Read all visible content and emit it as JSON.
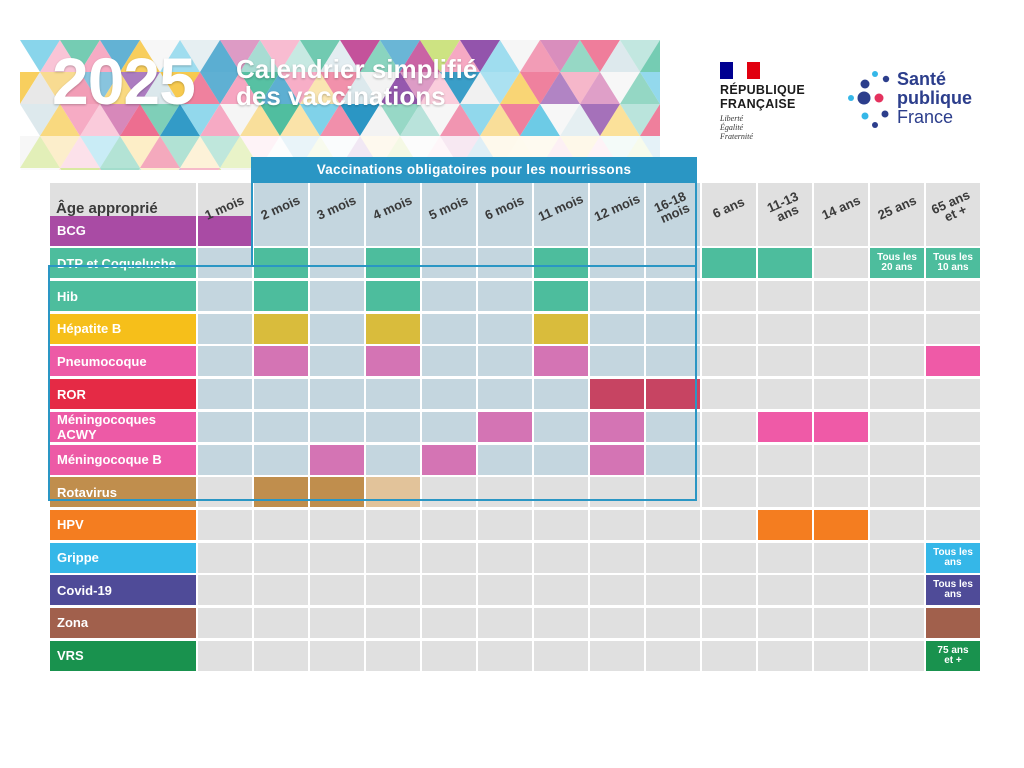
{
  "header": {
    "year": "2025",
    "title_line1": "Calendrier simplifié",
    "title_line2": "des vaccinations",
    "republic_line1": "RÉPUBLIQUE",
    "republic_line2": "FRANÇAISE",
    "motto": [
      "Liberté",
      "Égalité",
      "Fraternité"
    ],
    "spf_line1": "Santé",
    "spf_line2": "publique",
    "spf_line3": "France"
  },
  "mandatory_label": "Vaccinations obligatoires pour les nourrissons",
  "table": {
    "first_header": "Âge approprié",
    "ages": [
      [
        "1 mois"
      ],
      [
        "2 mois"
      ],
      [
        "3 mois"
      ],
      [
        "4 mois"
      ],
      [
        "5 mois"
      ],
      [
        "6 mois"
      ],
      [
        "11 mois"
      ],
      [
        "12 mois"
      ],
      [
        "16-18",
        "mois"
      ],
      [
        "6 ans"
      ],
      [
        "11-13",
        "ans"
      ],
      [
        "14 ans"
      ],
      [
        "25 ans"
      ],
      [
        "65 ans",
        "et +"
      ]
    ],
    "vaccines": [
      {
        "name": "BCG",
        "color": "#a94ba4",
        "cells": [
          [
            0,
            ""
          ]
        ]
      },
      {
        "name": "DTP et Coqueluche",
        "color": "#4dbd9d",
        "cells": [
          [
            1,
            ""
          ],
          [
            3,
            ""
          ],
          [
            6,
            ""
          ],
          [
            9,
            ""
          ],
          [
            10,
            ""
          ],
          [
            12,
            "Tous les 20 ans"
          ],
          [
            13,
            "Tous les 10 ans"
          ]
        ]
      },
      {
        "name": "Hib",
        "color": "#4dbd9d",
        "cells": [
          [
            1,
            ""
          ],
          [
            3,
            ""
          ],
          [
            6,
            ""
          ]
        ]
      },
      {
        "name": "Hépatite B",
        "color": "#f6bf1a",
        "cellColor": "#d9bc3c",
        "cells": [
          [
            1,
            ""
          ],
          [
            3,
            ""
          ],
          [
            6,
            ""
          ]
        ]
      },
      {
        "name": "Pneumocoque",
        "color": "#ed5aa6",
        "cellColor": "#d474b4",
        "cells": [
          [
            1,
            ""
          ],
          [
            3,
            ""
          ],
          [
            6,
            ""
          ],
          [
            13,
            "",
            "#ef5aa7"
          ]
        ]
      },
      {
        "name": "ROR",
        "color": "#e52a45",
        "cellColor": "#c74462",
        "cells": [
          [
            7,
            ""
          ],
          [
            8,
            ""
          ]
        ]
      },
      {
        "name": "Méningocoques ACWY",
        "color": "#ed5aa6",
        "cellColor": "#d474b4",
        "cells": [
          [
            5,
            ""
          ],
          [
            7,
            ""
          ],
          [
            10,
            "",
            "#ef5aa7"
          ],
          [
            11,
            "",
            "#ef5aa7"
          ]
        ]
      },
      {
        "name": "Méningocoque B",
        "color": "#ed5aa6",
        "cellColor": "#d474b4",
        "cells": [
          [
            2,
            ""
          ],
          [
            4,
            ""
          ],
          [
            7,
            ""
          ]
        ]
      },
      {
        "name": "Rotavirus",
        "color": "#c08e4d",
        "cells": [
          [
            1,
            ""
          ],
          [
            2,
            ""
          ],
          [
            3,
            "",
            "#e2c39a"
          ]
        ]
      },
      {
        "name": "HPV",
        "color": "#f47d20",
        "cells": [
          [
            10,
            ""
          ],
          [
            11,
            ""
          ]
        ]
      },
      {
        "name": "Grippe",
        "color": "#35b7e8",
        "cells": [
          [
            13,
            "Tous les ans"
          ]
        ]
      },
      {
        "name": "Covid-19",
        "color": "#4f4b98",
        "cells": [
          [
            13,
            "Tous les ans"
          ]
        ]
      },
      {
        "name": "Zona",
        "color": "#a1604c",
        "cells": [
          [
            13,
            ""
          ]
        ]
      },
      {
        "name": "VRS",
        "color": "#19924e",
        "cells": [
          [
            13,
            "75 ans et +"
          ]
        ]
      }
    ]
  },
  "colors": {
    "grey_cell": "#e0e0e0",
    "mandatory_cell": "#c4d6df",
    "mandatory_frame": "#2a96c4"
  }
}
